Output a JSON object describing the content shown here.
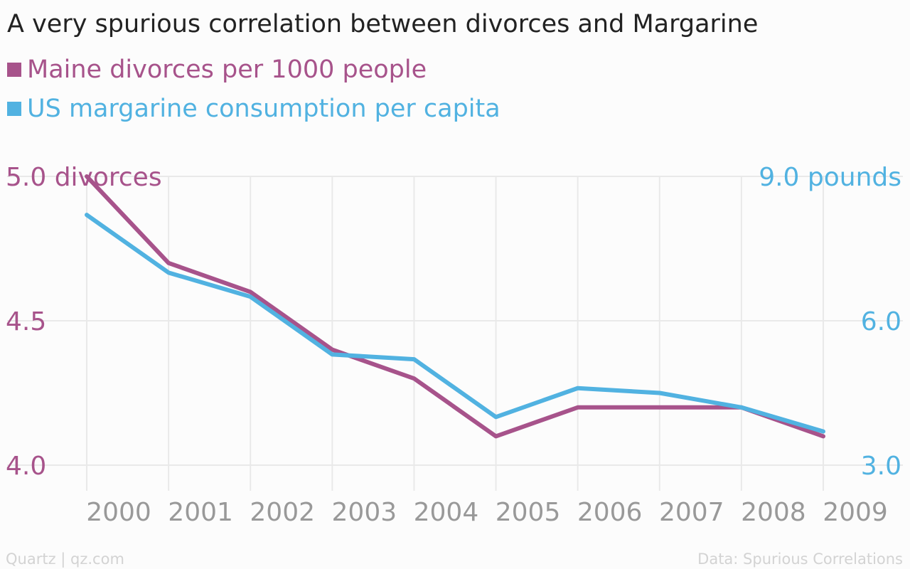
{
  "chart_data": {
    "type": "line",
    "title": "A very spurious correlation between divorces and Margarine",
    "x": [
      "2000",
      "2001",
      "2002",
      "2003",
      "2004",
      "2005",
      "2006",
      "2007",
      "2008",
      "2009"
    ],
    "series": [
      {
        "name": "Maine divorces per 1000 people",
        "axis": "left",
        "color": "#a7538b",
        "values": [
          5.0,
          4.7,
          4.6,
          4.4,
          4.3,
          4.1,
          4.2,
          4.2,
          4.2,
          4.1
        ]
      },
      {
        "name": "US margarine consumption per capita",
        "axis": "right",
        "color": "#51b2e1",
        "values": [
          8.2,
          7.0,
          6.5,
          5.3,
          5.2,
          4.0,
          4.6,
          4.5,
          4.2,
          3.7
        ]
      }
    ],
    "y_left": {
      "range": [
        4.0,
        5.0
      ],
      "ticks": [
        "4.0",
        "4.5",
        "5.0 divorces"
      ],
      "color": "#a7538b"
    },
    "y_right": {
      "range": [
        3.0,
        9.0
      ],
      "ticks": [
        "3.0",
        "6.0",
        "9.0 pounds"
      ],
      "color": "#51b2e1"
    },
    "grid": true
  },
  "footer": {
    "credit": "Quartz | qz.com",
    "source": "Data: Spurious Correlations"
  },
  "colors": {
    "grid": "#e9e9e9",
    "x_tick_text": "#999999",
    "title": "#222222"
  }
}
